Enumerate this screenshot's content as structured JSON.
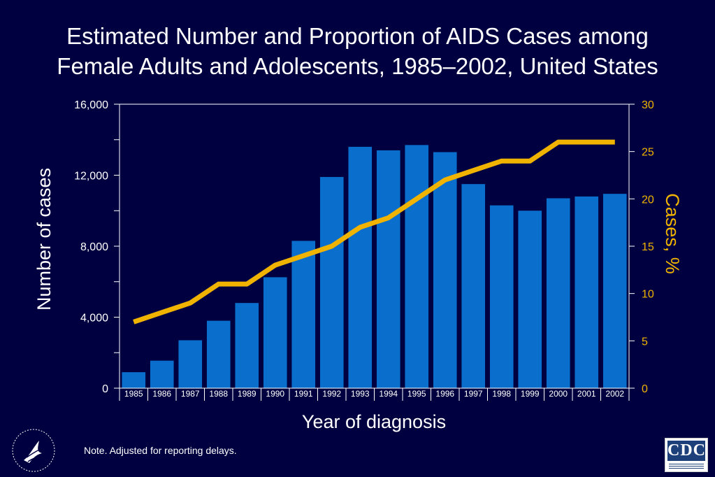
{
  "title_line1": "Estimated Number and Proportion of AIDS Cases among",
  "title_line2": "Female Adults and Adolescents, 1985–2002,  United States",
  "note": "Note. Adjusted for reporting delays.",
  "logos": {
    "cdc_text": "CDC"
  },
  "colors": {
    "background": "#000040",
    "bars": "#0a6fcc",
    "line": "#f0b400",
    "right_axis": "#f0b400",
    "axes": "#ffffff"
  },
  "chart_data": {
    "type": "bar",
    "xlabel": "Year of diagnosis",
    "ylabel": "Number of cases",
    "ylabel_right": "Cases, %",
    "categories": [
      "1985",
      "1986",
      "1987",
      "1988",
      "1989",
      "1990",
      "1991",
      "1992",
      "1993",
      "1994",
      "1995",
      "1996",
      "1997",
      "1998",
      "1999",
      "2000",
      "2001",
      "2002"
    ],
    "series": [
      {
        "type": "bar",
        "axis": "left",
        "values": [
          900,
          1550,
          2700,
          3800,
          4800,
          6250,
          8300,
          11900,
          13600,
          13400,
          13700,
          13300,
          11500,
          10300,
          10000,
          10700,
          10800,
          10950
        ]
      },
      {
        "type": "line",
        "axis": "right",
        "values": [
          7,
          8,
          9,
          11,
          11,
          13,
          14,
          15,
          17,
          18,
          20,
          22,
          23,
          24,
          24,
          26,
          26,
          26
        ]
      }
    ],
    "ylim": [
      0,
      16000
    ],
    "yticks": [
      "0",
      "4,000",
      "8,000",
      "12,000",
      "16,000"
    ],
    "yticks_values": [
      0,
      4000,
      8000,
      12000,
      16000
    ],
    "y2lim": [
      0,
      30
    ],
    "y2ticks": [
      "0",
      "5",
      "10",
      "15",
      "20",
      "25",
      "30"
    ],
    "y2ticks_values": [
      0,
      5,
      10,
      15,
      20,
      25,
      30
    ],
    "grid": false,
    "legend": "none"
  }
}
